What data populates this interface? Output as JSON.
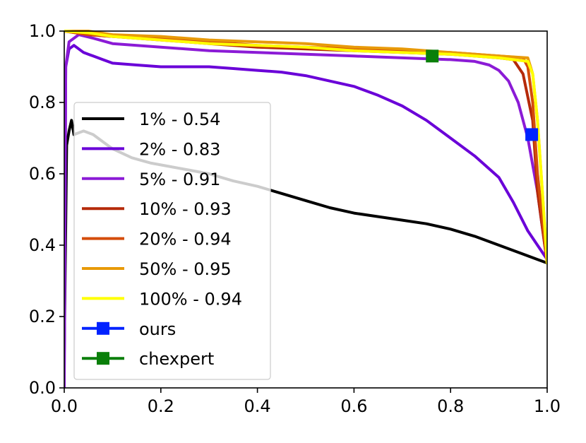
{
  "chart_data": {
    "type": "line",
    "title": "",
    "xlabel": "",
    "ylabel": "",
    "xlim": [
      0.0,
      1.0
    ],
    "ylim": [
      0.0,
      1.0
    ],
    "x_ticks": [
      "0.0",
      "0.2",
      "0.4",
      "0.6",
      "0.8",
      "1.0"
    ],
    "y_ticks": [
      "0.0",
      "0.2",
      "0.4",
      "0.6",
      "0.8",
      "1.0"
    ],
    "grid": false,
    "legend_position": "lower-left",
    "series": [
      {
        "name": "1% - 0.54",
        "color": "#000000",
        "points": [
          [
            0.0,
            0.1
          ],
          [
            0.005,
            0.68
          ],
          [
            0.01,
            0.72
          ],
          [
            0.015,
            0.75
          ],
          [
            0.02,
            0.71
          ],
          [
            0.04,
            0.72
          ],
          [
            0.06,
            0.71
          ],
          [
            0.08,
            0.69
          ],
          [
            0.1,
            0.67
          ],
          [
            0.14,
            0.645
          ],
          [
            0.18,
            0.63
          ],
          [
            0.22,
            0.62
          ],
          [
            0.26,
            0.61
          ],
          [
            0.3,
            0.6
          ],
          [
            0.35,
            0.58
          ],
          [
            0.4,
            0.565
          ],
          [
            0.45,
            0.545
          ],
          [
            0.5,
            0.525
          ],
          [
            0.55,
            0.505
          ],
          [
            0.6,
            0.49
          ],
          [
            0.65,
            0.48
          ],
          [
            0.7,
            0.47
          ],
          [
            0.75,
            0.46
          ],
          [
            0.8,
            0.445
          ],
          [
            0.85,
            0.425
          ],
          [
            0.9,
            0.4
          ],
          [
            0.95,
            0.375
          ],
          [
            1.0,
            0.35
          ]
        ]
      },
      {
        "name": "2% - 0.83",
        "color": "#6a00d8",
        "points": [
          [
            0.0,
            0.05
          ],
          [
            0.003,
            0.9
          ],
          [
            0.01,
            0.95
          ],
          [
            0.02,
            0.96
          ],
          [
            0.04,
            0.94
          ],
          [
            0.06,
            0.93
          ],
          [
            0.08,
            0.92
          ],
          [
            0.1,
            0.91
          ],
          [
            0.15,
            0.905
          ],
          [
            0.2,
            0.9
          ],
          [
            0.25,
            0.9
          ],
          [
            0.3,
            0.9
          ],
          [
            0.35,
            0.895
          ],
          [
            0.4,
            0.89
          ],
          [
            0.45,
            0.885
          ],
          [
            0.5,
            0.875
          ],
          [
            0.55,
            0.86
          ],
          [
            0.6,
            0.845
          ],
          [
            0.65,
            0.82
          ],
          [
            0.7,
            0.79
          ],
          [
            0.75,
            0.75
          ],
          [
            0.8,
            0.7
          ],
          [
            0.85,
            0.65
          ],
          [
            0.9,
            0.59
          ],
          [
            0.93,
            0.52
          ],
          [
            0.96,
            0.44
          ],
          [
            1.0,
            0.36
          ]
        ]
      },
      {
        "name": "5% - 0.91",
        "color": "#8b1bd6",
        "points": [
          [
            0.0,
            0.0
          ],
          [
            0.003,
            0.9
          ],
          [
            0.01,
            0.97
          ],
          [
            0.03,
            0.99
          ],
          [
            0.06,
            0.98
          ],
          [
            0.1,
            0.965
          ],
          [
            0.15,
            0.96
          ],
          [
            0.2,
            0.955
          ],
          [
            0.3,
            0.945
          ],
          [
            0.4,
            0.94
          ],
          [
            0.5,
            0.935
          ],
          [
            0.6,
            0.93
          ],
          [
            0.7,
            0.925
          ],
          [
            0.8,
            0.92
          ],
          [
            0.85,
            0.915
          ],
          [
            0.88,
            0.905
          ],
          [
            0.9,
            0.89
          ],
          [
            0.92,
            0.86
          ],
          [
            0.94,
            0.8
          ],
          [
            0.96,
            0.7
          ],
          [
            0.98,
            0.55
          ],
          [
            1.0,
            0.35
          ]
        ]
      },
      {
        "name": "10% - 0.93",
        "color": "#b52a0a",
        "points": [
          [
            0.0,
            1.0
          ],
          [
            0.05,
            0.99
          ],
          [
            0.1,
            0.985
          ],
          [
            0.2,
            0.975
          ],
          [
            0.3,
            0.965
          ],
          [
            0.4,
            0.955
          ],
          [
            0.5,
            0.95
          ],
          [
            0.6,
            0.945
          ],
          [
            0.7,
            0.94
          ],
          [
            0.8,
            0.935
          ],
          [
            0.85,
            0.93
          ],
          [
            0.9,
            0.925
          ],
          [
            0.93,
            0.92
          ],
          [
            0.95,
            0.88
          ],
          [
            0.97,
            0.75
          ],
          [
            0.98,
            0.55
          ],
          [
            1.0,
            0.35
          ]
        ]
      },
      {
        "name": "20% - 0.94",
        "color": "#d44d0a",
        "points": [
          [
            0.0,
            1.0
          ],
          [
            0.05,
            0.99
          ],
          [
            0.1,
            0.985
          ],
          [
            0.2,
            0.98
          ],
          [
            0.3,
            0.97
          ],
          [
            0.4,
            0.96
          ],
          [
            0.5,
            0.955
          ],
          [
            0.6,
            0.95
          ],
          [
            0.7,
            0.945
          ],
          [
            0.8,
            0.94
          ],
          [
            0.9,
            0.93
          ],
          [
            0.95,
            0.925
          ],
          [
            0.96,
            0.9
          ],
          [
            0.97,
            0.8
          ],
          [
            0.98,
            0.6
          ],
          [
            1.0,
            0.35
          ]
        ]
      },
      {
        "name": "50% - 0.95",
        "color": "#e89a08",
        "points": [
          [
            0.0,
            1.0
          ],
          [
            0.05,
            1.0
          ],
          [
            0.1,
            0.99
          ],
          [
            0.2,
            0.985
          ],
          [
            0.3,
            0.975
          ],
          [
            0.4,
            0.97
          ],
          [
            0.5,
            0.965
          ],
          [
            0.6,
            0.955
          ],
          [
            0.7,
            0.95
          ],
          [
            0.8,
            0.94
          ],
          [
            0.9,
            0.93
          ],
          [
            0.96,
            0.925
          ],
          [
            0.97,
            0.88
          ],
          [
            0.98,
            0.75
          ],
          [
            0.99,
            0.55
          ],
          [
            1.0,
            0.35
          ]
        ]
      },
      {
        "name": "100% - 0.94",
        "color": "#ffff00",
        "points": [
          [
            0.0,
            1.0
          ],
          [
            0.05,
            0.995
          ],
          [
            0.1,
            0.985
          ],
          [
            0.2,
            0.975
          ],
          [
            0.3,
            0.965
          ],
          [
            0.4,
            0.96
          ],
          [
            0.5,
            0.955
          ],
          [
            0.6,
            0.945
          ],
          [
            0.7,
            0.94
          ],
          [
            0.8,
            0.935
          ],
          [
            0.9,
            0.925
          ],
          [
            0.96,
            0.915
          ],
          [
            0.97,
            0.88
          ],
          [
            0.98,
            0.75
          ],
          [
            0.99,
            0.55
          ],
          [
            1.0,
            0.35
          ]
        ]
      }
    ],
    "markers": [
      {
        "name": "ours",
        "color": "#0022ff",
        "x": 0.968,
        "y": 0.71
      },
      {
        "name": "chexpert",
        "color": "#0a7f0a",
        "x": 0.762,
        "y": 0.93
      }
    ]
  }
}
